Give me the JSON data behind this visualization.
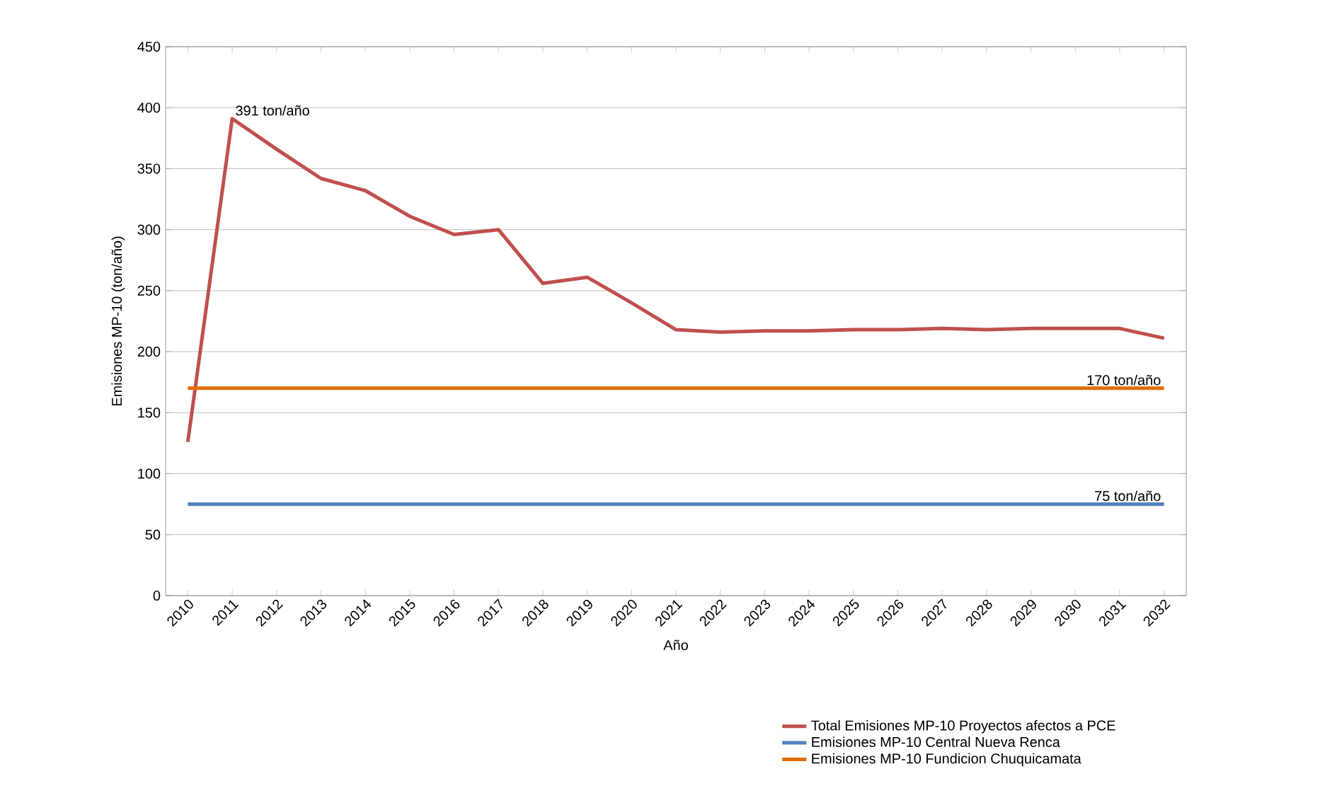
{
  "chart_data": {
    "type": "line",
    "xlabel": "Año",
    "ylabel": "Emisiones MP-10 (ton/año)",
    "categories": [
      "2010",
      "2011",
      "2012",
      "2013",
      "2014",
      "2015",
      "2016",
      "2017",
      "2018",
      "2019",
      "2020",
      "2021",
      "2022",
      "2023",
      "2024",
      "2025",
      "2026",
      "2027",
      "2028",
      "2029",
      "2030",
      "2031",
      "2032"
    ],
    "series": [
      {
        "name": "Total Emisiones MP-10  Proyectos afectos a PCE",
        "color": "#c0504d",
        "values": [
          126,
          391,
          366,
          342,
          332,
          311,
          296,
          300,
          256,
          261,
          240,
          218,
          216,
          217,
          217,
          218,
          218,
          219,
          218,
          219,
          219,
          219,
          211
        ]
      },
      {
        "name": "Emisiones MP-10 Central Nueva Renca",
        "color": "#4f81bd",
        "values": [
          75,
          75,
          75,
          75,
          75,
          75,
          75,
          75,
          75,
          75,
          75,
          75,
          75,
          75,
          75,
          75,
          75,
          75,
          75,
          75,
          75,
          75,
          75
        ]
      },
      {
        "name": "Emisiones MP-10 Fundicion Chuquicamata",
        "color": "#e36c09",
        "values": [
          170,
          170,
          170,
          170,
          170,
          170,
          170,
          170,
          170,
          170,
          170,
          170,
          170,
          170,
          170,
          170,
          170,
          170,
          170,
          170,
          170,
          170,
          170
        ]
      }
    ],
    "ylim": [
      0,
      450
    ],
    "yticks": [
      0,
      50,
      100,
      150,
      200,
      250,
      300,
      350,
      400,
      450
    ],
    "grid": "y",
    "legend": "bottom right",
    "annotations": [
      {
        "text": "391 ton/año",
        "x": "2011",
        "y": 391
      },
      {
        "text": "170 ton/año",
        "x": "2032",
        "y": 170
      },
      {
        "text": "75 ton/año",
        "x": "2032",
        "y": 75
      }
    ]
  }
}
